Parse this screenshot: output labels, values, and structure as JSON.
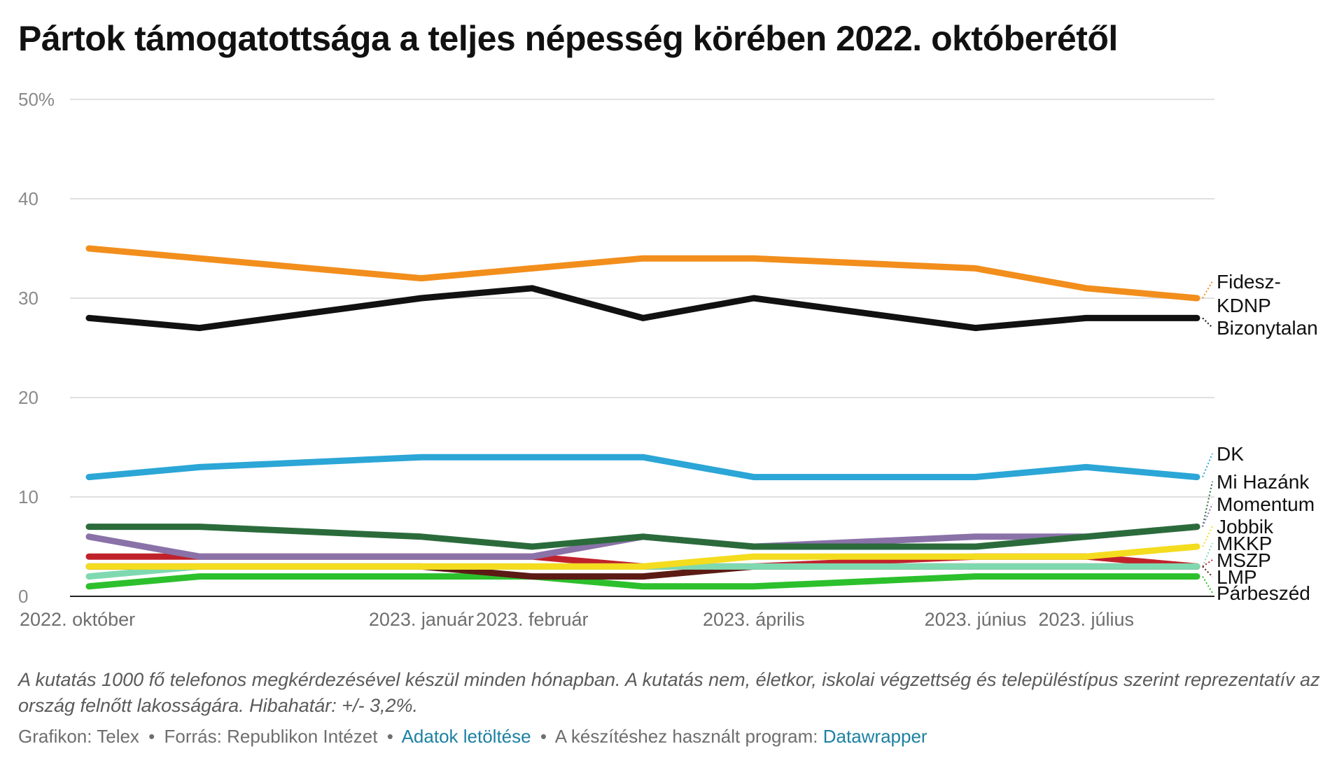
{
  "title": "Pártok támogatottsága a teljes népesség körében 2022. októberétől",
  "notes": "A kutatás 1000 fő telefonos megkérdezésével készül minden hónapban. A kutatás nem, életkor, iskolai végzettség és településtípus szerint reprezentatív az ország felnőtt lakosságára. Hibahatár: +/- 3,2%.",
  "footer": {
    "credit": "Grafikon: Telex",
    "source": "Forrás: Republikon Intézet",
    "download_link": "Adatok letöltése",
    "program_label": "A készítéshez használt program:",
    "program_link": "Datawrapper",
    "separator": "•"
  },
  "colors": {
    "link": "#1d81a2",
    "grid": "#e0e0e0",
    "axis": "#222222",
    "tick_text": "#8a8a8a"
  },
  "chart_data": {
    "type": "line",
    "title": "Pártok támogatottsága a teljes népesség körében 2022. októberétől",
    "x": [
      "2022-10",
      "2022-11",
      "2023-01",
      "2023-02",
      "2023-03",
      "2023-04",
      "2023-06",
      "2023-07",
      "2023-08"
    ],
    "x_tick_labels": [
      {
        "x": "2022-10",
        "label": "2022. október"
      },
      {
        "x": "2023-01",
        "label": "2023. január"
      },
      {
        "x": "2023-02",
        "label": "2023. február"
      },
      {
        "x": "2023-04",
        "label": "2023. április"
      },
      {
        "x": "2023-06",
        "label": "2023. június"
      },
      {
        "x": "2023-07",
        "label": "2023. július"
      }
    ],
    "y_ticks": [
      0,
      10,
      20,
      30,
      40,
      50
    ],
    "y_tick_labels": [
      "0",
      "10",
      "20",
      "30",
      "40",
      "50%"
    ],
    "ylim": [
      0,
      50
    ],
    "grid": true,
    "legend": "direct labels at right end of lines",
    "series": [
      {
        "name": "Fidesz-KDNP",
        "label_lines": [
          "Fidesz-",
          "KDNP"
        ],
        "color": "#f28e1c",
        "values": [
          35,
          34,
          32,
          33,
          34,
          34,
          33,
          31,
          30
        ]
      },
      {
        "name": "Bizonytalan",
        "label_lines": [
          "Bizonytalan"
        ],
        "color": "#111111",
        "values": [
          28,
          27,
          30,
          31,
          28,
          30,
          27,
          28,
          28
        ]
      },
      {
        "name": "DK",
        "label_lines": [
          "DK"
        ],
        "color": "#2ba6d6",
        "values": [
          12,
          13,
          14,
          14,
          14,
          12,
          12,
          13,
          12
        ]
      },
      {
        "name": "Mi Hazánk",
        "label_lines": [
          "Mi Hazánk"
        ],
        "color": "#2b6b3b",
        "values": [
          7,
          7,
          6,
          5,
          6,
          5,
          5,
          6,
          7
        ]
      },
      {
        "name": "Momentum",
        "label_lines": [
          "Momentum"
        ],
        "color": "#8a72a8",
        "values": [
          6,
          4,
          4,
          4,
          6,
          5,
          6,
          6,
          7
        ]
      },
      {
        "name": "Jobbik",
        "label_lines": [
          "Jobbik"
        ],
        "color": "#f4dc1e",
        "values": [
          3,
          3,
          3,
          3,
          3,
          4,
          4,
          4,
          5
        ]
      },
      {
        "name": "MKKP",
        "label_lines": [
          "MKKP"
        ],
        "color": "#7fd9b0",
        "values": [
          2,
          3,
          3,
          3,
          3,
          3,
          3,
          3,
          3
        ]
      },
      {
        "name": "MSZP",
        "label_lines": [
          "MSZP"
        ],
        "color": "#c0222b",
        "values": [
          4,
          4,
          4,
          4,
          3,
          3,
          4,
          4,
          3
        ]
      },
      {
        "name": "LMP",
        "label_lines": [
          "LMP"
        ],
        "color": "#5c1a14",
        "values": [
          3,
          3,
          3,
          2,
          2,
          3,
          3,
          3,
          3
        ]
      },
      {
        "name": "Párbeszéd",
        "label_lines": [
          "Párbeszéd"
        ],
        "color": "#2cc02c",
        "values": [
          1,
          2,
          2,
          2,
          1,
          1,
          2,
          2,
          2
        ]
      }
    ]
  }
}
